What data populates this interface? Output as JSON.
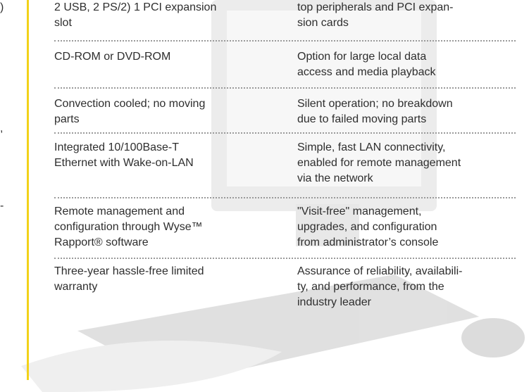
{
  "margin": [
    ")",
    ",",
    "-"
  ],
  "table": {
    "rows": [
      [
        [
          "2 USB, 2 PS/2) 1 PCI expansion",
          "slot"
        ],
        [
          "top peripherals and PCI expan-",
          "sion cards"
        ]
      ],
      [
        [
          "CD-ROM or DVD-ROM"
        ],
        [
          "Option for large local data",
          "access and media playback"
        ]
      ],
      [
        [
          "Convection cooled; no moving",
          "parts"
        ],
        [
          "Silent operation; no breakdown",
          "due to failed moving parts"
        ]
      ],
      [
        [
          "Integrated 10/100Base-T",
          "Ethernet with Wake-on-LAN"
        ],
        [
          "Simple, fast LAN connectivity,",
          "enabled for remote management",
          "via the network"
        ]
      ],
      [
        [
          "Remote management and",
          "configuration through Wyse™",
          "Rapport® software"
        ],
        [
          "\"Visit-free\" management,",
          "upgrades, and configuration",
          "from administrator’s console"
        ]
      ],
      [
        [
          "Three-year hassle-free limited",
          "warranty"
        ],
        [
          "Assurance of reliability, availabili-",
          "ty, and performance, from the",
          "industry leader"
        ]
      ]
    ]
  }
}
